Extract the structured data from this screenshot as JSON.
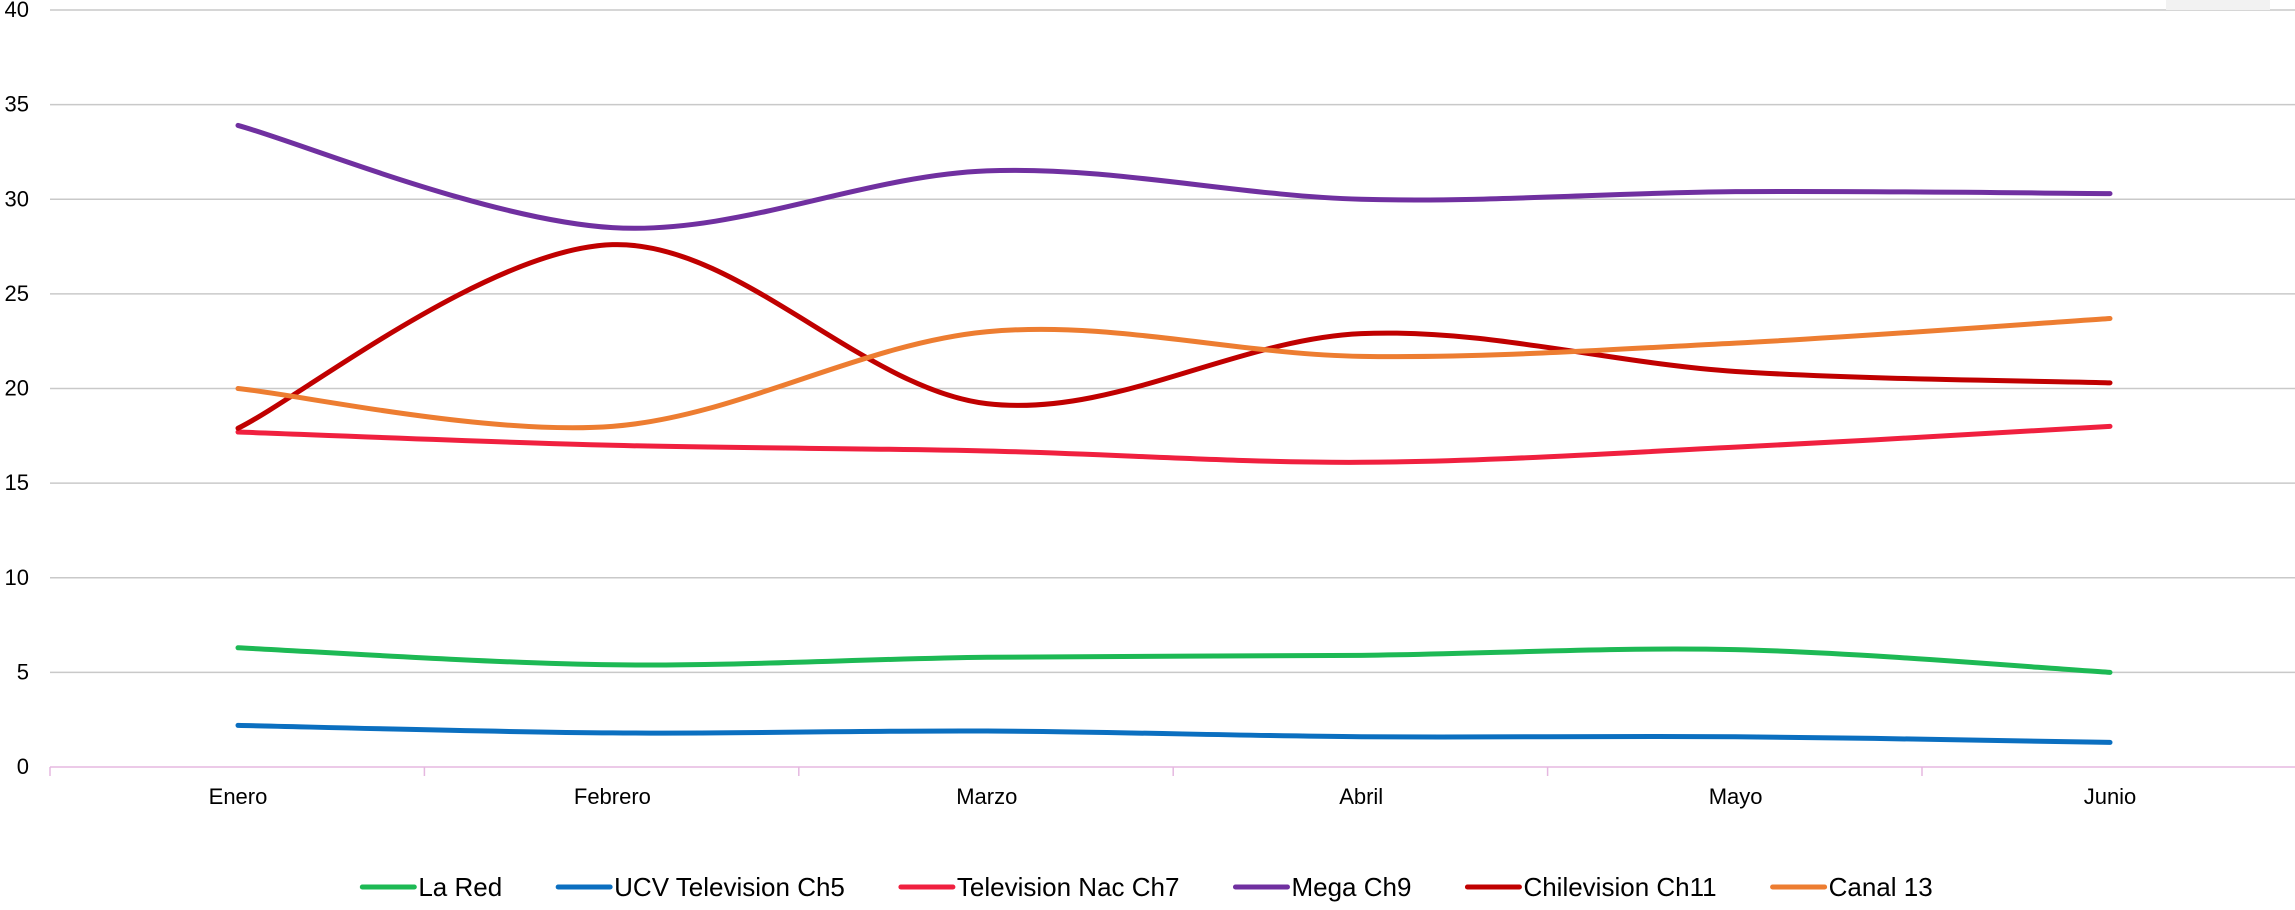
{
  "chart_data": {
    "type": "line",
    "smooth": true,
    "title": "",
    "xlabel": "",
    "ylabel": "",
    "categories": [
      "Enero",
      "Febrero",
      "Marzo",
      "Abril",
      "Mayo",
      "Junio"
    ],
    "ylim": [
      0,
      40
    ],
    "yticks": [
      0,
      5,
      10,
      15,
      20,
      25,
      30,
      35,
      40
    ],
    "grid": true,
    "legend_position": "bottom",
    "series": [
      {
        "name": "La Red",
        "color": "#1db954",
        "values": [
          6.3,
          5.4,
          5.8,
          5.9,
          6.2,
          5.0
        ]
      },
      {
        "name": "UCV Television Ch5",
        "color": "#0b6fc0",
        "values": [
          2.2,
          1.8,
          1.9,
          1.6,
          1.6,
          1.3
        ]
      },
      {
        "name": "Television Nac Ch7",
        "color": "#f0203f",
        "values": [
          17.7,
          17.0,
          16.7,
          16.1,
          16.9,
          18.0
        ]
      },
      {
        "name": "Mega Ch9",
        "color": "#7030a0",
        "values": [
          33.9,
          28.5,
          31.5,
          30.0,
          30.4,
          30.3
        ]
      },
      {
        "name": "Chilevision Ch11",
        "color": "#c00000",
        "values": [
          17.9,
          27.6,
          19.2,
          22.9,
          20.9,
          20.3
        ]
      },
      {
        "name": "Canal 13",
        "color": "#ed7d31",
        "values": [
          20.0,
          18.0,
          23.0,
          21.7,
          22.4,
          23.7
        ]
      }
    ]
  }
}
